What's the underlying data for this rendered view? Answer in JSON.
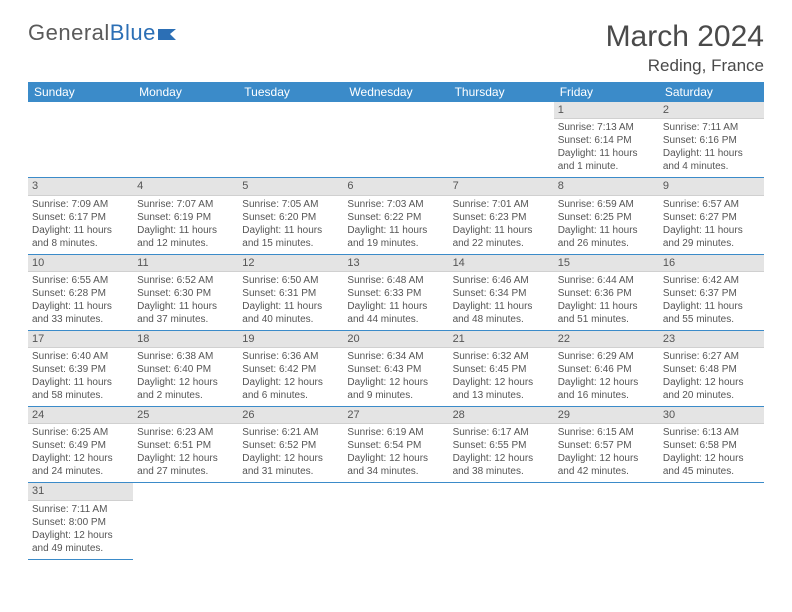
{
  "logo": {
    "general": "General",
    "blue": "Blue"
  },
  "title": "March 2024",
  "location": "Reding, France",
  "colors": {
    "header_bg": "#3b8bc9",
    "header_fg": "#ffffff",
    "daynum_bg": "#e4e4e4",
    "border": "#3b8bc9",
    "text": "#4a4a4a",
    "logo_general": "#5a5a5a",
    "logo_blue": "#2c6fb5"
  },
  "weekdays": [
    "Sunday",
    "Monday",
    "Tuesday",
    "Wednesday",
    "Thursday",
    "Friday",
    "Saturday"
  ],
  "weeks": [
    [
      null,
      null,
      null,
      null,
      null,
      {
        "n": "1",
        "sunrise": "Sunrise: 7:13 AM",
        "sunset": "Sunset: 6:14 PM",
        "daylight": "Daylight: 11 hours and 1 minute."
      },
      {
        "n": "2",
        "sunrise": "Sunrise: 7:11 AM",
        "sunset": "Sunset: 6:16 PM",
        "daylight": "Daylight: 11 hours and 4 minutes."
      }
    ],
    [
      {
        "n": "3",
        "sunrise": "Sunrise: 7:09 AM",
        "sunset": "Sunset: 6:17 PM",
        "daylight": "Daylight: 11 hours and 8 minutes."
      },
      {
        "n": "4",
        "sunrise": "Sunrise: 7:07 AM",
        "sunset": "Sunset: 6:19 PM",
        "daylight": "Daylight: 11 hours and 12 minutes."
      },
      {
        "n": "5",
        "sunrise": "Sunrise: 7:05 AM",
        "sunset": "Sunset: 6:20 PM",
        "daylight": "Daylight: 11 hours and 15 minutes."
      },
      {
        "n": "6",
        "sunrise": "Sunrise: 7:03 AM",
        "sunset": "Sunset: 6:22 PM",
        "daylight": "Daylight: 11 hours and 19 minutes."
      },
      {
        "n": "7",
        "sunrise": "Sunrise: 7:01 AM",
        "sunset": "Sunset: 6:23 PM",
        "daylight": "Daylight: 11 hours and 22 minutes."
      },
      {
        "n": "8",
        "sunrise": "Sunrise: 6:59 AM",
        "sunset": "Sunset: 6:25 PM",
        "daylight": "Daylight: 11 hours and 26 minutes."
      },
      {
        "n": "9",
        "sunrise": "Sunrise: 6:57 AM",
        "sunset": "Sunset: 6:27 PM",
        "daylight": "Daylight: 11 hours and 29 minutes."
      }
    ],
    [
      {
        "n": "10",
        "sunrise": "Sunrise: 6:55 AM",
        "sunset": "Sunset: 6:28 PM",
        "daylight": "Daylight: 11 hours and 33 minutes."
      },
      {
        "n": "11",
        "sunrise": "Sunrise: 6:52 AM",
        "sunset": "Sunset: 6:30 PM",
        "daylight": "Daylight: 11 hours and 37 minutes."
      },
      {
        "n": "12",
        "sunrise": "Sunrise: 6:50 AM",
        "sunset": "Sunset: 6:31 PM",
        "daylight": "Daylight: 11 hours and 40 minutes."
      },
      {
        "n": "13",
        "sunrise": "Sunrise: 6:48 AM",
        "sunset": "Sunset: 6:33 PM",
        "daylight": "Daylight: 11 hours and 44 minutes."
      },
      {
        "n": "14",
        "sunrise": "Sunrise: 6:46 AM",
        "sunset": "Sunset: 6:34 PM",
        "daylight": "Daylight: 11 hours and 48 minutes."
      },
      {
        "n": "15",
        "sunrise": "Sunrise: 6:44 AM",
        "sunset": "Sunset: 6:36 PM",
        "daylight": "Daylight: 11 hours and 51 minutes."
      },
      {
        "n": "16",
        "sunrise": "Sunrise: 6:42 AM",
        "sunset": "Sunset: 6:37 PM",
        "daylight": "Daylight: 11 hours and 55 minutes."
      }
    ],
    [
      {
        "n": "17",
        "sunrise": "Sunrise: 6:40 AM",
        "sunset": "Sunset: 6:39 PM",
        "daylight": "Daylight: 11 hours and 58 minutes."
      },
      {
        "n": "18",
        "sunrise": "Sunrise: 6:38 AM",
        "sunset": "Sunset: 6:40 PM",
        "daylight": "Daylight: 12 hours and 2 minutes."
      },
      {
        "n": "19",
        "sunrise": "Sunrise: 6:36 AM",
        "sunset": "Sunset: 6:42 PM",
        "daylight": "Daylight: 12 hours and 6 minutes."
      },
      {
        "n": "20",
        "sunrise": "Sunrise: 6:34 AM",
        "sunset": "Sunset: 6:43 PM",
        "daylight": "Daylight: 12 hours and 9 minutes."
      },
      {
        "n": "21",
        "sunrise": "Sunrise: 6:32 AM",
        "sunset": "Sunset: 6:45 PM",
        "daylight": "Daylight: 12 hours and 13 minutes."
      },
      {
        "n": "22",
        "sunrise": "Sunrise: 6:29 AM",
        "sunset": "Sunset: 6:46 PM",
        "daylight": "Daylight: 12 hours and 16 minutes."
      },
      {
        "n": "23",
        "sunrise": "Sunrise: 6:27 AM",
        "sunset": "Sunset: 6:48 PM",
        "daylight": "Daylight: 12 hours and 20 minutes."
      }
    ],
    [
      {
        "n": "24",
        "sunrise": "Sunrise: 6:25 AM",
        "sunset": "Sunset: 6:49 PM",
        "daylight": "Daylight: 12 hours and 24 minutes."
      },
      {
        "n": "25",
        "sunrise": "Sunrise: 6:23 AM",
        "sunset": "Sunset: 6:51 PM",
        "daylight": "Daylight: 12 hours and 27 minutes."
      },
      {
        "n": "26",
        "sunrise": "Sunrise: 6:21 AM",
        "sunset": "Sunset: 6:52 PM",
        "daylight": "Daylight: 12 hours and 31 minutes."
      },
      {
        "n": "27",
        "sunrise": "Sunrise: 6:19 AM",
        "sunset": "Sunset: 6:54 PM",
        "daylight": "Daylight: 12 hours and 34 minutes."
      },
      {
        "n": "28",
        "sunrise": "Sunrise: 6:17 AM",
        "sunset": "Sunset: 6:55 PM",
        "daylight": "Daylight: 12 hours and 38 minutes."
      },
      {
        "n": "29",
        "sunrise": "Sunrise: 6:15 AM",
        "sunset": "Sunset: 6:57 PM",
        "daylight": "Daylight: 12 hours and 42 minutes."
      },
      {
        "n": "30",
        "sunrise": "Sunrise: 6:13 AM",
        "sunset": "Sunset: 6:58 PM",
        "daylight": "Daylight: 12 hours and 45 minutes."
      }
    ],
    [
      {
        "n": "31",
        "sunrise": "Sunrise: 7:11 AM",
        "sunset": "Sunset: 8:00 PM",
        "daylight": "Daylight: 12 hours and 49 minutes."
      },
      null,
      null,
      null,
      null,
      null,
      null
    ]
  ]
}
